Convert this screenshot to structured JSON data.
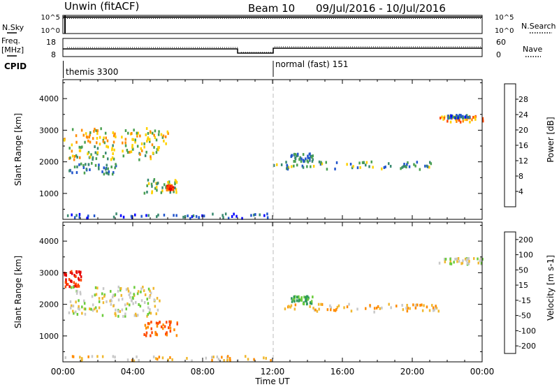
{
  "header": {
    "station": "Unwin (fitACF)",
    "beam": "Beam 10",
    "date_range": "09/Jul/2016 - 10/Jul/2016"
  },
  "noise_panel": {
    "left_label": "N.Sky",
    "right_label": "N.Search",
    "left_ticks": [
      "10^5",
      "10^0"
    ],
    "right_ticks": [
      "10^5",
      "10^0"
    ]
  },
  "freq_panel": {
    "left_label_1": "Freq.",
    "left_label_2": "[MHz]",
    "right_label": "Nave",
    "left_ticks": [
      "18",
      "8"
    ],
    "right_ticks": [
      "60",
      "0"
    ]
  },
  "cpid_panel": {
    "label": "CPID",
    "segments": [
      {
        "text": "themis 3300",
        "start_hour": 0
      },
      {
        "text": "normal (fast) 151",
        "start_hour": 12
      }
    ]
  },
  "power_panel": {
    "ylabel": "Slant Range [km]",
    "yticks": [
      "1000",
      "2000",
      "3000",
      "4000"
    ],
    "colorbar_label": "Power [dB]",
    "colorbar_ticks": [
      "4",
      "8",
      "12",
      "16",
      "20",
      "24",
      "28"
    ],
    "colors": [
      "#0000ff",
      "#2255cc",
      "#3a8a70",
      "#4aa050",
      "#ffd200",
      "#ff8c00",
      "#ff4500",
      "#e60000"
    ]
  },
  "velocity_panel": {
    "ylabel": "Slant Range [km]",
    "yticks": [
      "1000",
      "2000",
      "3000",
      "4000"
    ],
    "colorbar_label": "Velocity [m s-1]",
    "colorbar_ticks": [
      "200",
      "100",
      "50",
      "15",
      "-15",
      "-50",
      "-100",
      "-200"
    ],
    "colors": [
      "#1030c0",
      "#2a6aa0",
      "#2f9a5a",
      "#6ccc3c",
      "#c8c8c8",
      "#f0b830",
      "#ff8c00",
      "#ff4a00",
      "#e60000"
    ]
  },
  "xaxis": {
    "label": "Time UT",
    "ticks": [
      "00:00",
      "04:00",
      "08:00",
      "12:00",
      "16:00",
      "20:00",
      "00:00"
    ]
  },
  "chart_data": {
    "type": "heatmap",
    "title": "Unwin (fitACF) Beam 10 09/Jul/2016 - 10/Jul/2016",
    "xlabel": "Time UT",
    "ylabel": "Slant Range [km]",
    "xlim_hours": [
      0,
      24
    ],
    "ylim_km": [
      180,
      4600
    ],
    "series": [
      {
        "name": "Power [dB]",
        "regions": [
          {
            "t0": 0.0,
            "t1": 6.0,
            "r0": 2600,
            "r1": 3100,
            "value": 18
          },
          {
            "t0": 0.3,
            "t1": 5.5,
            "r0": 2100,
            "r1": 2600,
            "value": 16
          },
          {
            "t0": 0.3,
            "t1": 3.0,
            "r0": 1650,
            "r1": 2000,
            "value": 10
          },
          {
            "t0": 4.6,
            "t1": 6.6,
            "r0": 1050,
            "r1": 1500,
            "value": 14
          },
          {
            "t0": 5.9,
            "t1": 6.3,
            "r0": 1150,
            "r1": 1300,
            "value": 28
          },
          {
            "t0": 0.0,
            "t1": 12.0,
            "r0": 250,
            "r1": 400,
            "value": 6
          },
          {
            "t0": 12.0,
            "t1": 21.5,
            "r0": 1800,
            "r1": 2050,
            "value": 12
          },
          {
            "t0": 13.0,
            "t1": 14.3,
            "r0": 2050,
            "r1": 2300,
            "value": 10
          },
          {
            "t0": 21.5,
            "t1": 24.0,
            "r0": 3300,
            "r1": 3500,
            "value": 22
          },
          {
            "t0": 22.0,
            "t1": 23.3,
            "r0": 3420,
            "r1": 3520,
            "value": 8
          }
        ]
      },
      {
        "name": "Velocity [m s-1]",
        "regions": [
          {
            "t0": 0.0,
            "t1": 1.0,
            "r0": 2600,
            "r1": 3100,
            "value": -200
          },
          {
            "t0": 0.3,
            "t1": 5.5,
            "r0": 1650,
            "r1": 2600,
            "value": 0
          },
          {
            "t0": 4.6,
            "t1": 6.6,
            "r0": 1050,
            "r1": 1500,
            "value": -120
          },
          {
            "t0": 0.0,
            "t1": 12.0,
            "r0": 250,
            "r1": 400,
            "value": -30
          },
          {
            "t0": 12.0,
            "t1": 21.5,
            "r0": 1800,
            "r1": 2050,
            "value": -40
          },
          {
            "t0": 13.0,
            "t1": 14.3,
            "r0": 2050,
            "r1": 2300,
            "value": 60
          },
          {
            "t0": 21.5,
            "t1": 24.0,
            "r0": 3300,
            "r1": 3500,
            "value": 0
          }
        ]
      }
    ]
  }
}
